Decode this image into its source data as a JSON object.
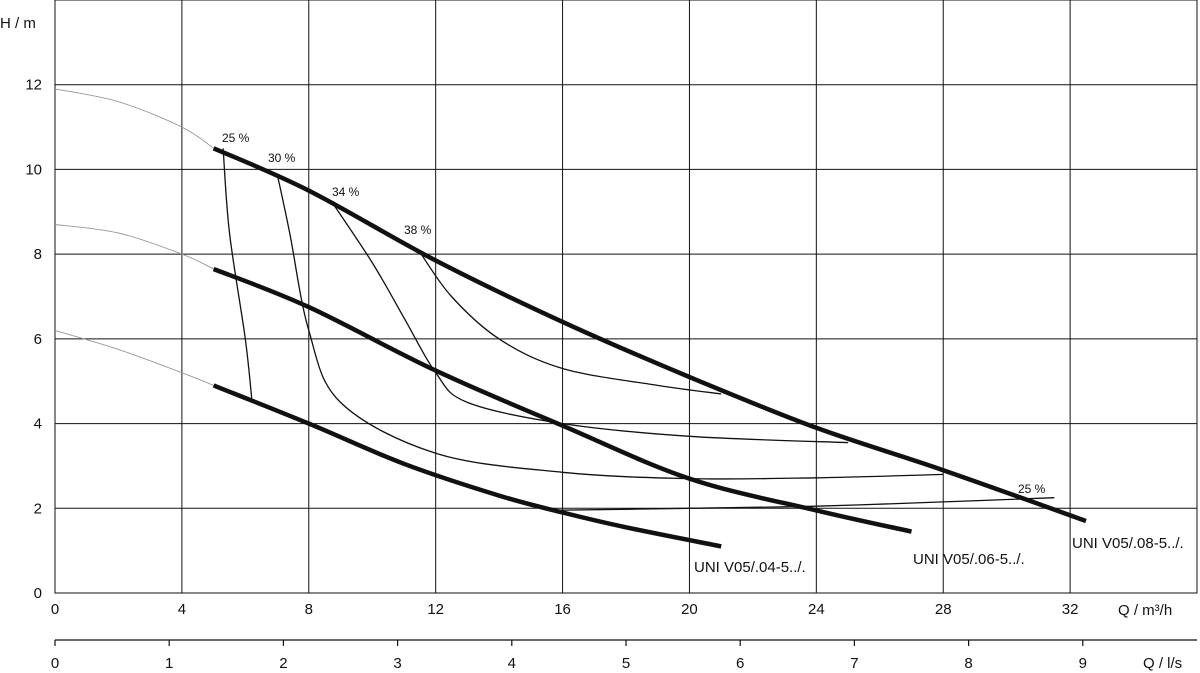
{
  "chart_data": {
    "type": "line",
    "title": "",
    "ylabel": "H / m",
    "xlabel": "Q / m³/h",
    "x2label": "Q / l/s",
    "x_ticks": [
      "0",
      "4",
      "8",
      "12",
      "16",
      "20",
      "24",
      "28",
      "32"
    ],
    "x2_ticks": [
      "0",
      "1",
      "2",
      "3",
      "4",
      "5",
      "6",
      "7",
      "8",
      "9"
    ],
    "y_ticks": [
      "0",
      "2",
      "4",
      "6",
      "8",
      "10",
      "12"
    ],
    "xlim": [
      0,
      36
    ],
    "ylim": [
      0,
      14
    ],
    "x2lim": [
      0,
      10
    ],
    "grid": true,
    "series": [
      {
        "name": "UNI V05/.04-5../.",
        "x": [
          5.0,
          8.0,
          11.0,
          14.0,
          16.0,
          18.0,
          21.0
        ],
        "y": [
          4.9,
          4.0,
          3.05,
          2.3,
          1.9,
          1.55,
          1.1
        ]
      },
      {
        "name": "UNI V05/.06-5../.",
        "x": [
          5.0,
          8.0,
          12.0,
          16.0,
          20.0,
          24.0,
          27.0
        ],
        "y": [
          7.65,
          6.75,
          5.25,
          3.95,
          2.7,
          1.95,
          1.45
        ]
      },
      {
        "name": "UNI V05/.08-5../.",
        "x": [
          5.0,
          8.0,
          12.0,
          16.0,
          20.0,
          24.0,
          28.0,
          32.5
        ],
        "y": [
          10.5,
          9.5,
          7.85,
          6.4,
          5.1,
          3.9,
          2.9,
          1.7
        ]
      }
    ],
    "extrapolations": [
      {
        "x": [
          0,
          2.0,
          4.0,
          5.0
        ],
        "y": [
          6.2,
          5.75,
          5.2,
          4.9
        ]
      },
      {
        "x": [
          0,
          2.0,
          4.0,
          5.0
        ],
        "y": [
          8.7,
          8.5,
          8.0,
          7.65
        ]
      },
      {
        "x": [
          0,
          2.0,
          4.0,
          5.0
        ],
        "y": [
          11.9,
          11.6,
          11.0,
          10.5
        ]
      }
    ],
    "percent_curves": [
      {
        "x": [
          5.3,
          5.5,
          6.0,
          6.2
        ],
        "y": [
          10.5,
          8.5,
          6.0,
          4.6
        ]
      },
      {
        "x": [
          7.0,
          7.4,
          8.0,
          9.0,
          12.0,
          16.0,
          20.0,
          24.0,
          28.0
        ],
        "y": [
          9.9,
          8.5,
          6.2,
          4.5,
          3.3,
          2.85,
          2.7,
          2.72,
          2.8
        ]
      },
      {
        "x": [
          8.8,
          10.0,
          11.0,
          12.0,
          13.0,
          16.0,
          20.0,
          25.0
        ],
        "y": [
          9.15,
          7.8,
          6.5,
          5.2,
          4.5,
          4.0,
          3.7,
          3.55
        ]
      },
      {
        "x": [
          11.5,
          12.5,
          14.0,
          16.0,
          19.0,
          21.0
        ],
        "y": [
          8.05,
          7.0,
          6.0,
          5.3,
          4.9,
          4.7
        ]
      },
      {
        "x": [
          15.5,
          20.0,
          24.0,
          28.0,
          31.5
        ],
        "y": [
          1.95,
          2.0,
          2.05,
          2.15,
          2.25
        ]
      }
    ],
    "annotations": [
      "25 %",
      "30 %",
      "34 %",
      "38 %",
      "25 %"
    ]
  }
}
